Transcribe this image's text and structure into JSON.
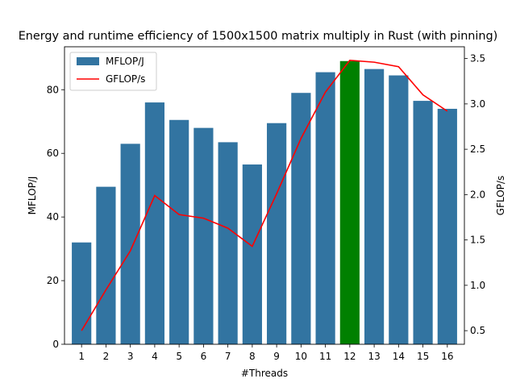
{
  "chart_data": {
    "type": "bar",
    "title": "Energy and runtime efficiency of 1500x1500 matrix multiply in Rust (with pinning)",
    "xlabel": "#Threads",
    "ylabel_left": "MFLOP/J",
    "ylabel_right": "GFLOP/s",
    "categories": [
      "1",
      "2",
      "3",
      "4",
      "5",
      "6",
      "7",
      "8",
      "9",
      "10",
      "11",
      "12",
      "13",
      "14",
      "15",
      "16"
    ],
    "ylim_left": [
      0,
      93.5
    ],
    "ylim_right": [
      0.35,
      3.63
    ],
    "yticks_left": [
      0,
      20,
      40,
      60,
      80
    ],
    "yticks_right": [
      0.5,
      1.0,
      1.5,
      2.0,
      2.5,
      3.0,
      3.5
    ],
    "legend": {
      "position": "top-left"
    },
    "highlight_index": 11,
    "series": [
      {
        "name": "MFLOP/J",
        "kind": "bar",
        "axis": "left",
        "color": "#3274a1",
        "highlight_color": "#008000",
        "values": [
          32.0,
          49.5,
          63.0,
          76.0,
          70.5,
          68.0,
          63.5,
          56.5,
          69.5,
          79.0,
          85.5,
          89.0,
          86.5,
          84.5,
          76.5,
          74.0
        ]
      },
      {
        "name": "GFLOP/s",
        "kind": "line",
        "axis": "right",
        "color": "#ff0000",
        "values": [
          0.5,
          0.95,
          1.38,
          1.99,
          1.78,
          1.74,
          1.63,
          1.43,
          2.01,
          2.62,
          3.13,
          3.48,
          3.46,
          3.41,
          3.1,
          2.92
        ]
      }
    ]
  }
}
